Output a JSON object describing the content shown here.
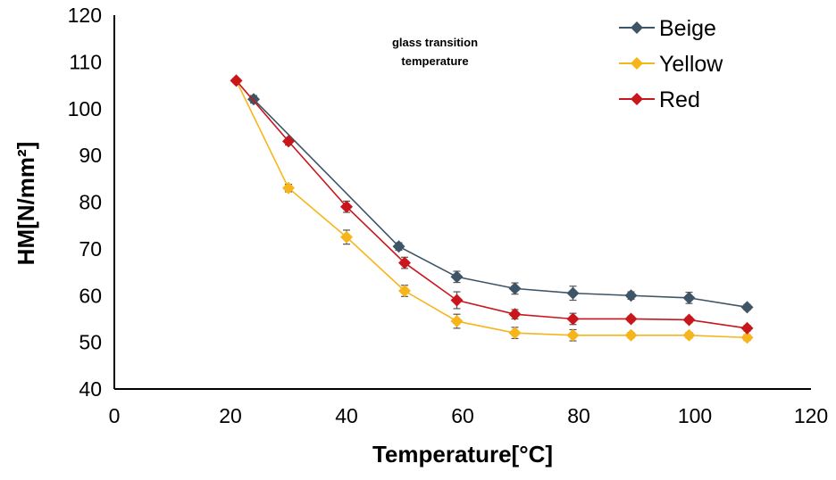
{
  "chart_data": {
    "type": "line",
    "title": "",
    "xlabel": "Temperature[°C]",
    "ylabel": "HM[N/mm²]",
    "xlim": [
      0,
      120
    ],
    "ylim": [
      40,
      120
    ],
    "xticks": [
      0,
      20,
      40,
      60,
      80,
      100,
      120
    ],
    "yticks": [
      40,
      50,
      60,
      70,
      80,
      90,
      100,
      110,
      120
    ],
    "x_tick_labels": [
      "0",
      "20",
      "40",
      "60",
      "80",
      "100",
      "120"
    ],
    "y_tick_labels": [
      "40",
      "50",
      "60",
      "70",
      "80",
      "90",
      "100",
      "110",
      "120"
    ],
    "grid": false,
    "legend_position": "top-right",
    "annotation": [
      "glass transition",
      "temperature"
    ],
    "series": [
      {
        "name": "Beige",
        "color": "#3d5566",
        "marker": "diamond",
        "x": [
          24,
          49,
          59,
          69,
          79,
          89,
          99,
          109
        ],
        "y": [
          102,
          70.5,
          64,
          61.5,
          60.5,
          60,
          59.5,
          57.5
        ],
        "err": [
          0.8,
          0.8,
          1.2,
          1.2,
          1.5,
          0.8,
          1.2,
          0.6
        ]
      },
      {
        "name": "Yellow",
        "color": "#f7b51c",
        "marker": "diamond",
        "x": [
          21,
          30,
          40,
          50,
          59,
          69,
          79,
          89,
          99,
          109
        ],
        "y": [
          106,
          83,
          72.5,
          61,
          54.5,
          52,
          51.5,
          51.5,
          51.5,
          51
        ],
        "err": [
          0.5,
          0.8,
          1.5,
          1.2,
          1.5,
          1.2,
          1.2,
          0.6,
          0.6,
          0.6
        ]
      },
      {
        "name": "Red",
        "color": "#c8161c",
        "marker": "diamond",
        "x": [
          21,
          30,
          40,
          50,
          59,
          69,
          79,
          89,
          99,
          109
        ],
        "y": [
          106,
          93,
          79,
          67,
          59,
          56,
          55,
          55,
          54.8,
          53
        ],
        "err": [
          0.5,
          0.8,
          1.2,
          1.2,
          1.8,
          1.0,
          1.2,
          0.6,
          0.6,
          0.6
        ]
      }
    ]
  }
}
